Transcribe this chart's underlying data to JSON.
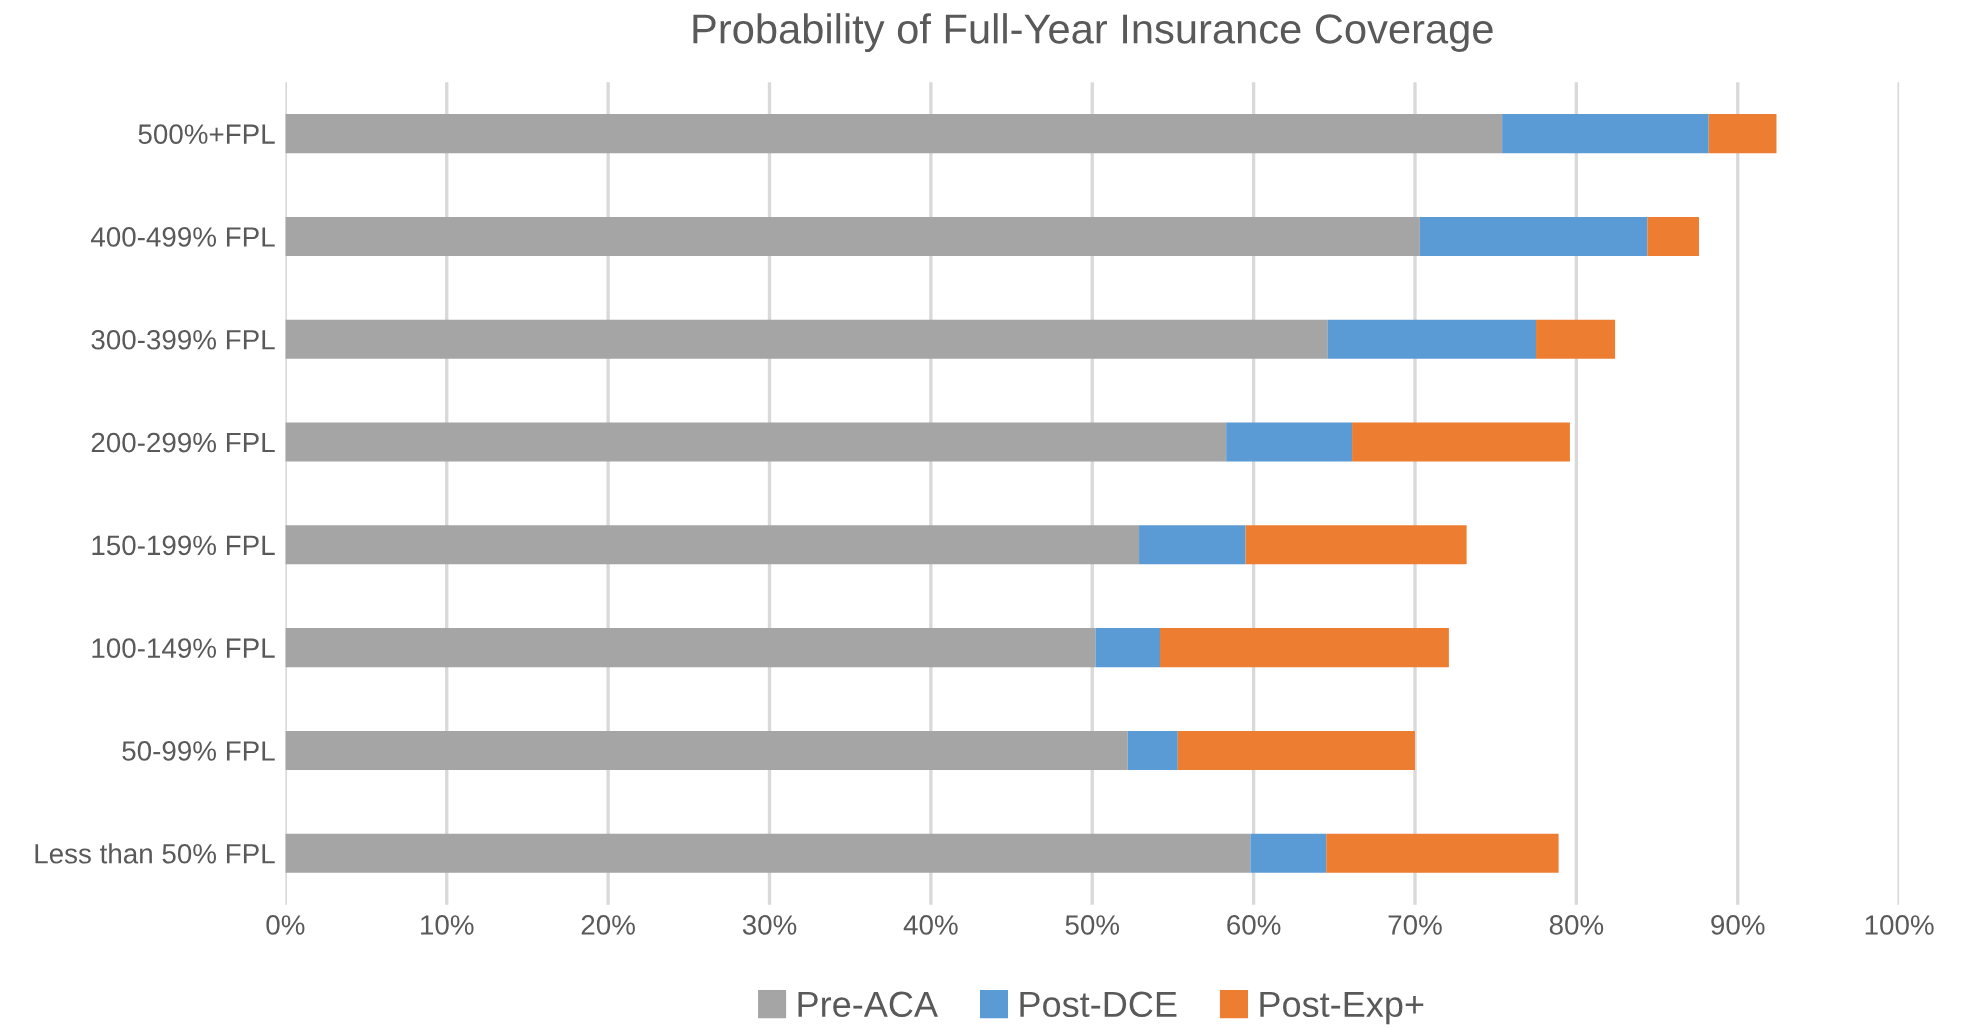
{
  "chart_data": {
    "type": "bar",
    "orientation": "horizontal",
    "stacked": true,
    "title": "Probability of Full-Year Insurance Coverage",
    "categories": [
      "500%+FPL",
      "400-499% FPL",
      "300-399% FPL",
      "200-299% FPL",
      "150-199% FPL",
      "100-149% FPL",
      "50-99% FPL",
      "Less than 50% FPL"
    ],
    "series": [
      {
        "name": "Pre-ACA",
        "color": "#a5a5a5",
        "values": [
          75.4,
          70.3,
          64.6,
          58.3,
          52.9,
          50.2,
          52.2,
          59.8
        ]
      },
      {
        "name": "Post-DCE",
        "color": "#5b9bd5",
        "values": [
          12.8,
          14.1,
          12.9,
          7.8,
          6.6,
          4.0,
          3.1,
          4.7
        ]
      },
      {
        "name": "Post-Exp+",
        "color": "#ed7d31",
        "values": [
          4.2,
          3.2,
          4.9,
          13.5,
          13.7,
          17.9,
          14.7,
          14.4
        ]
      }
    ],
    "xlim": [
      0,
      100
    ],
    "xticks": [
      {
        "value": 0,
        "label": "0%"
      },
      {
        "value": 10,
        "label": "10%"
      },
      {
        "value": 20,
        "label": "20%"
      },
      {
        "value": 30,
        "label": "30%"
      },
      {
        "value": 40,
        "label": "40%"
      },
      {
        "value": 50,
        "label": "50%"
      },
      {
        "value": 60,
        "label": "60%"
      },
      {
        "value": 70,
        "label": "70%"
      },
      {
        "value": 80,
        "label": "80%"
      },
      {
        "value": 90,
        "label": "90%"
      },
      {
        "value": 100,
        "label": "100%"
      }
    ],
    "grid": "x",
    "legend": "bottom"
  }
}
